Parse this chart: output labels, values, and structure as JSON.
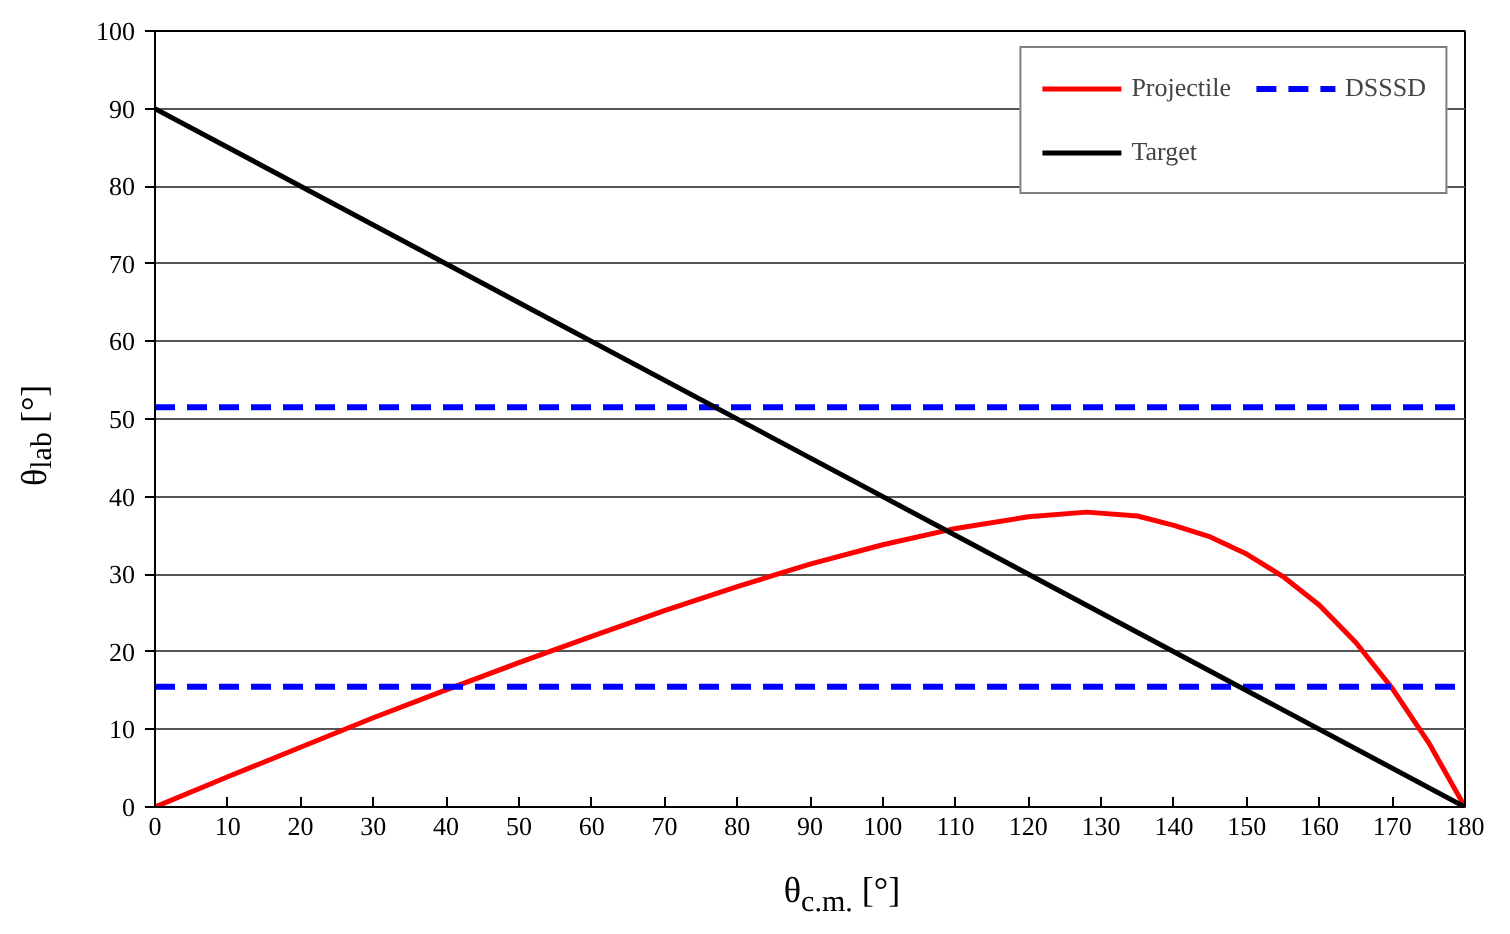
{
  "chart_data": {
    "type": "line",
    "xlabel": "θ$_{c.m.}$ [°]",
    "ylabel": "θ$_{lab}$ [°]",
    "xlim": [
      0,
      180
    ],
    "ylim": [
      0,
      100
    ],
    "xticks": [
      0,
      10,
      20,
      30,
      40,
      50,
      60,
      70,
      80,
      90,
      100,
      110,
      120,
      130,
      140,
      150,
      160,
      170,
      180
    ],
    "yticks": [
      0,
      10,
      20,
      30,
      40,
      50,
      60,
      70,
      80,
      90,
      100
    ],
    "grid": "y",
    "legend": "top right",
    "marker": "none",
    "series": [
      {
        "name": "Projectile",
        "color": "#ff0000",
        "line_style": "solid",
        "x": [
          0,
          10,
          20,
          30,
          40,
          50,
          60,
          70,
          80,
          90,
          100,
          110,
          120,
          128,
          135,
          140,
          145,
          150,
          155,
          160,
          165,
          170,
          175,
          180
        ],
        "values": [
          0,
          3.9,
          7.7,
          11.5,
          15.1,
          18.6,
          22,
          25.3,
          28.4,
          31.3,
          33.8,
          35.9,
          37.4,
          38,
          37.5,
          36.3,
          34.8,
          32.6,
          29.7,
          26,
          21.2,
          15.3,
          8.3,
          0
        ]
      },
      {
        "name": "DSSSD",
        "color": "#0000ff",
        "line_style": "dashed",
        "x": [
          0,
          180
        ],
        "values": [
          51.5,
          51.5
        ]
      },
      {
        "color": "#0000ff",
        "line_style": "dashed",
        "x": [
          0,
          180
        ],
        "values": [
          15.5,
          15.5
        ]
      },
      {
        "name": "Target",
        "color": "#000000",
        "line_style": "solid",
        "x": [
          0,
          180
        ],
        "values": [
          90,
          0
        ]
      }
    ]
  }
}
